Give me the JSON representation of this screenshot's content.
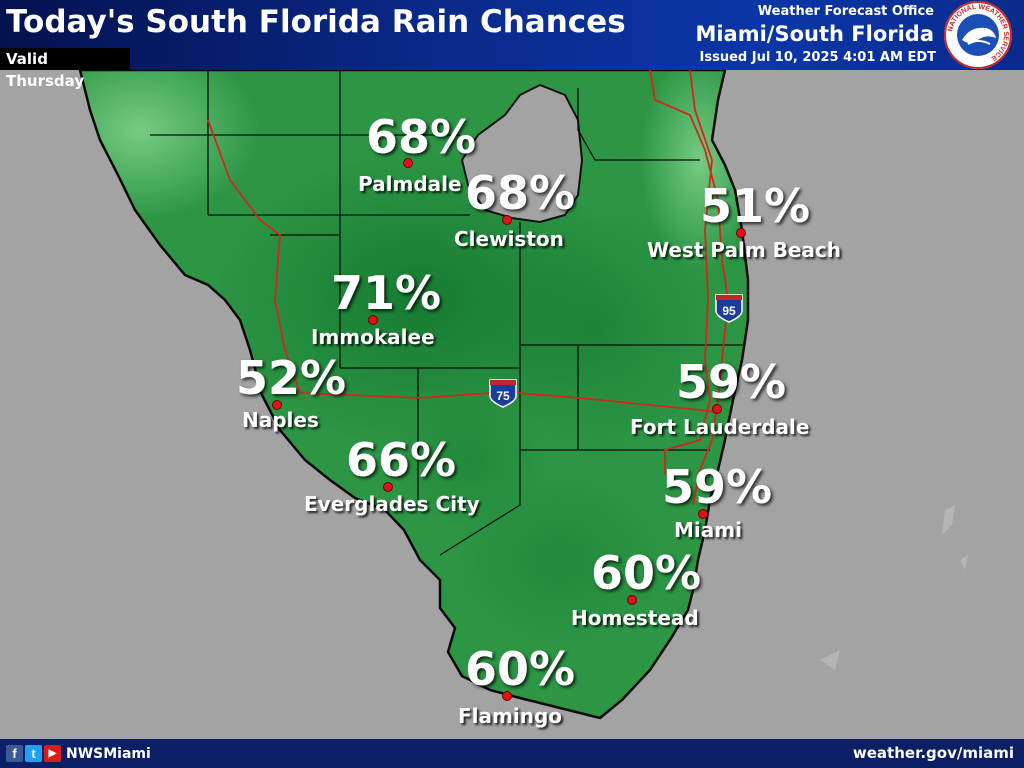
{
  "header": {
    "title": "Today's South Florida Rain Chances",
    "valid": "Valid Thursday",
    "office_line1": "Weather Forecast Office",
    "office_line2": "Miami/South Florida",
    "issued": "Issued Jul 10, 2025 4:01 AM EDT"
  },
  "footer": {
    "handle": "NWSMiami",
    "website": "weather.gov/miami",
    "social_icons": [
      "facebook-icon",
      "twitter-icon",
      "youtube-icon"
    ]
  },
  "logo": {
    "text": "NATIONAL WEATHER SERVICE",
    "icon": "nws-logo"
  },
  "highways": [
    {
      "name": "I-75",
      "label": "75"
    },
    {
      "name": "I-95",
      "label": "95"
    }
  ],
  "colors": {
    "land_dark": "#1f8a3b",
    "land_light": "#5fbf6a",
    "water": "#a3a3a3",
    "header": "#0a2a8c",
    "dot": "#e3101b",
    "road": "#d3261e"
  },
  "cities": [
    {
      "id": "palmdale",
      "name": "Palmdale",
      "chance": "68%"
    },
    {
      "id": "clewiston",
      "name": "Clewiston",
      "chance": "68%"
    },
    {
      "id": "west-palm-beach",
      "name": "West Palm Beach",
      "chance": "51%"
    },
    {
      "id": "immokalee",
      "name": "Immokalee",
      "chance": "71%"
    },
    {
      "id": "naples",
      "name": "Naples",
      "chance": "52%"
    },
    {
      "id": "fort-lauderdale",
      "name": "Fort Lauderdale",
      "chance": "59%"
    },
    {
      "id": "everglades-city",
      "name": "Everglades City",
      "chance": "66%"
    },
    {
      "id": "miami",
      "name": "Miami",
      "chance": "59%"
    },
    {
      "id": "homestead",
      "name": "Homestead",
      "chance": "60%"
    },
    {
      "id": "flamingo",
      "name": "Flamingo",
      "chance": "60%"
    }
  ]
}
